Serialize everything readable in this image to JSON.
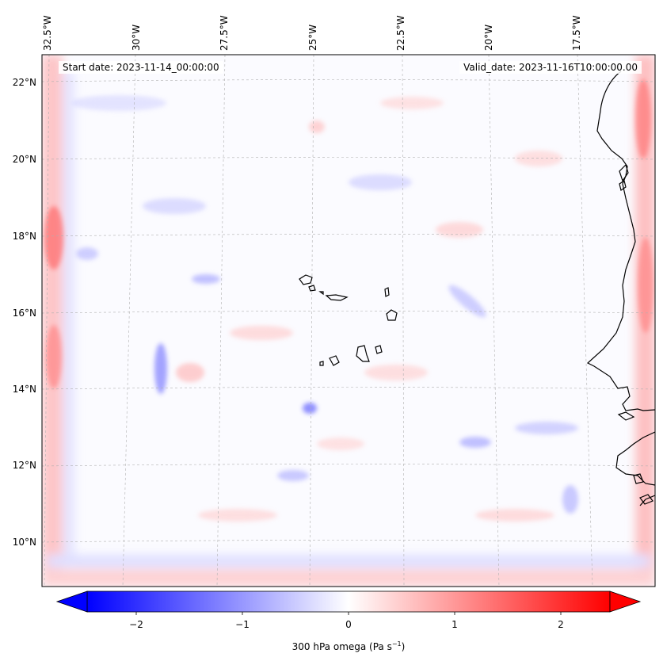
{
  "header": {
    "start_date": "Start date: 2023-11-14_00:00:00",
    "valid_date": "Valid_date: 2023-11-16T10:00:00.00"
  },
  "lon_labels": [
    "32.5°W",
    "30°W",
    "27.5°W",
    "25°W",
    "22.5°W",
    "20°W",
    "17.5°W"
  ],
  "lat_labels": [
    "22°N",
    "20°N",
    "18°N",
    "16°N",
    "14°N",
    "12°N",
    "10°N"
  ],
  "colorbar": {
    "label_main": "300 hPa omega (Pa s",
    "label_sup": "−1",
    "label_close": ")",
    "ticks": [
      "−2",
      "−1",
      "0",
      "1",
      "2"
    ],
    "tick_values": [
      -2,
      -1,
      0,
      1,
      2
    ],
    "range": [
      -2.5,
      2.5
    ],
    "colors": {
      "low": "#0000ff",
      "mid": "#ffffff",
      "high": "#ff0000"
    }
  },
  "colors": {
    "coastline": "#000000",
    "gridline": "#b0b0b0",
    "neg_field": "#8c8cff",
    "pos_field": "#ff8c8c"
  }
}
